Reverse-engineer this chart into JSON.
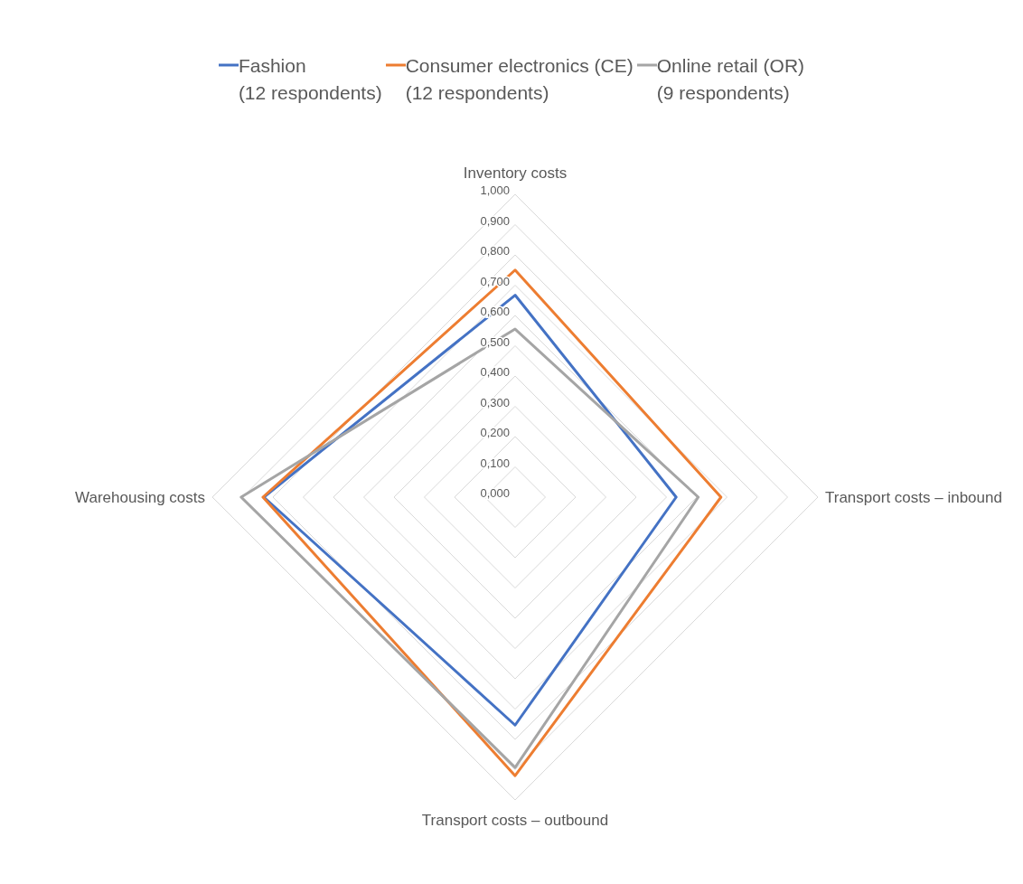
{
  "chart_data": {
    "type": "radar",
    "categories": [
      "Inventory costs",
      "Transport costs – inbound",
      "Transport costs – outbound",
      "Warehousing costs"
    ],
    "series": [
      {
        "name": "Fashion\n(12 respondents)",
        "color": "#4472c4",
        "values": [
          0.667,
          0.532,
          0.753,
          0.83
        ]
      },
      {
        "name": "Consumer electronics (CE)\n(12 respondents)",
        "color": "#ed7d31",
        "values": [
          0.75,
          0.68,
          0.92,
          0.833
        ]
      },
      {
        "name": "Online retail (OR)\n(9 respondents)",
        "color": "#a5a5a5",
        "values": [
          0.555,
          0.605,
          0.893,
          0.905
        ]
      }
    ],
    "ylim": [
      0,
      1
    ],
    "yticks": [
      {
        "value": 0,
        "label": "0,000"
      },
      {
        "value": 0.1,
        "label": "0,100"
      },
      {
        "value": 0.2,
        "label": "0,200"
      },
      {
        "value": 0.3,
        "label": "0,300"
      },
      {
        "value": 0.4,
        "label": "0,400"
      },
      {
        "value": 0.5,
        "label": "0,500"
      },
      {
        "value": 0.6,
        "label": "0,600"
      },
      {
        "value": 0.7,
        "label": "0,700"
      },
      {
        "value": 0.8,
        "label": "0,800"
      },
      {
        "value": 0.9,
        "label": "0,900"
      },
      {
        "value": 1,
        "label": "1,000"
      }
    ],
    "grid": true,
    "legend": "top",
    "marker": "none",
    "line_style": "solid"
  }
}
